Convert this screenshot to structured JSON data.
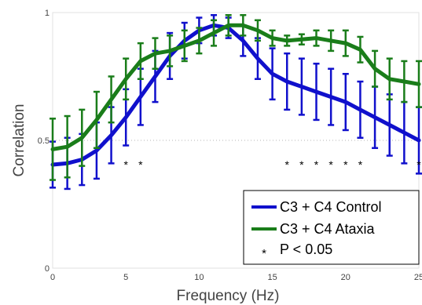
{
  "chart_data": {
    "type": "line",
    "title": "",
    "xlabel": "Frequency (Hz)",
    "ylabel": "Correlation",
    "xlim": [
      0,
      25
    ],
    "ylim": [
      0,
      1
    ],
    "x_ticks": [
      0,
      5,
      10,
      15,
      20,
      25
    ],
    "y_ticks": [
      0,
      0.5,
      1
    ],
    "y_tick_labels": [
      "0",
      "0.5",
      "1"
    ],
    "grid": "dotted horizontal at 0.5 and 1",
    "legend_position": "bottom-right",
    "x": [
      0,
      1,
      2,
      3,
      4,
      5,
      6,
      7,
      8,
      9,
      10,
      11,
      12,
      13,
      14,
      15,
      16,
      17,
      18,
      19,
      20,
      21,
      22,
      23,
      24,
      25
    ],
    "series": [
      {
        "name": "C3 + C4 Control",
        "color": "#1010cc",
        "values": [
          0.405,
          0.41,
          0.425,
          0.46,
          0.52,
          0.59,
          0.67,
          0.75,
          0.83,
          0.89,
          0.93,
          0.95,
          0.94,
          0.89,
          0.82,
          0.76,
          0.73,
          0.71,
          0.69,
          0.67,
          0.65,
          0.62,
          0.59,
          0.56,
          0.53,
          0.5
        ],
        "error": [
          0.09,
          0.1,
          0.1,
          0.11,
          0.11,
          0.11,
          0.11,
          0.1,
          0.09,
          0.07,
          0.05,
          0.04,
          0.04,
          0.06,
          0.08,
          0.1,
          0.11,
          0.11,
          0.11,
          0.11,
          0.11,
          0.11,
          0.12,
          0.12,
          0.12,
          0.13
        ]
      },
      {
        "name": "C3 + C4 Ataxia",
        "color": "#1a7d1a",
        "values": [
          0.465,
          0.475,
          0.51,
          0.58,
          0.66,
          0.74,
          0.81,
          0.84,
          0.85,
          0.87,
          0.89,
          0.92,
          0.95,
          0.95,
          0.93,
          0.9,
          0.89,
          0.895,
          0.9,
          0.89,
          0.88,
          0.855,
          0.78,
          0.74,
          0.73,
          0.72
        ],
        "error": [
          0.12,
          0.12,
          0.11,
          0.11,
          0.09,
          0.08,
          0.07,
          0.06,
          0.06,
          0.06,
          0.05,
          0.05,
          0.04,
          0.04,
          0.04,
          0.03,
          0.02,
          0.02,
          0.03,
          0.04,
          0.05,
          0.05,
          0.07,
          0.08,
          0.08,
          0.09
        ]
      }
    ],
    "significance": {
      "label": "P < 0.05",
      "marker": "*",
      "y": 0.405,
      "x": [
        5,
        6,
        16,
        17,
        18,
        19,
        20,
        21,
        25
      ]
    },
    "legend": [
      {
        "label": "C3 + C4 Control",
        "style": "line",
        "color": "#1010cc"
      },
      {
        "label": "C3 + C4 Ataxia",
        "style": "line",
        "color": "#1a7d1a"
      },
      {
        "label": "P < 0.05",
        "style": "marker",
        "color": "#000000"
      }
    ]
  }
}
